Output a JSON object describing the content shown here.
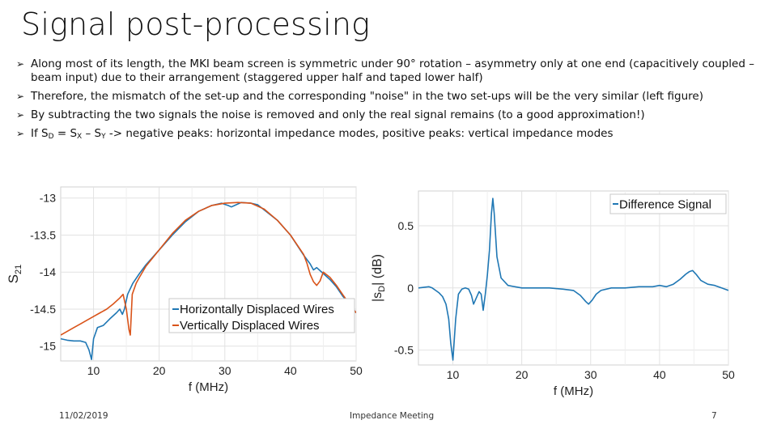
{
  "slide": {
    "title": "Signal post-processing",
    "bullets": [
      "Along most of its length, the MKI beam screen is symmetric under 90° rotation – asymmetry only at one end (capacitively coupled – beam input) due to their arrangement (staggered upper half and taped lower half)",
      "Therefore, the mismatch of the set-up and the corresponding \"noise\" in the two set-ups will be the very similar (left figure)",
      "By subtracting the two signals the noise is removed and only the real signal remains (to a good approximation!)"
    ],
    "bullet4": {
      "p1": "If S",
      "sub1": "D",
      "p2": " = S",
      "sub2": "X",
      "p3": " – S",
      "sub3": "Y",
      "p4": " -> negative peaks: horizontal impedance modes, positive peaks: vertical impedance modes"
    },
    "footer": {
      "date": "11/02/2019",
      "title": "Impedance Meeting",
      "page": "7"
    }
  },
  "chart_data": [
    {
      "type": "line",
      "xlabel": "f (MHz)",
      "ylabel": "S21",
      "xlim": [
        5,
        50
      ],
      "ylim": [
        -15.2,
        -12.85
      ],
      "xticks": [
        10,
        20,
        30,
        40,
        50
      ],
      "yticks": [
        -13,
        -13.5,
        -14,
        -14.5,
        -15
      ],
      "ytick_labels": [
        "-13",
        "-13.5",
        "-14",
        "-14.5",
        "-15"
      ],
      "grid": true,
      "legend": "bottom-right",
      "series": [
        {
          "name": "Horizontally Displaced Wires",
          "color": "#1f77b4",
          "points": [
            [
              5,
              -14.9
            ],
            [
              6,
              -14.92
            ],
            [
              7,
              -14.93
            ],
            [
              8,
              -14.93
            ],
            [
              8.8,
              -14.95
            ],
            [
              9.3,
              -15.05
            ],
            [
              9.7,
              -15.18
            ],
            [
              10,
              -14.9
            ],
            [
              10.6,
              -14.75
            ],
            [
              11.5,
              -14.72
            ],
            [
              12.5,
              -14.63
            ],
            [
              13.5,
              -14.55
            ],
            [
              14,
              -14.5
            ],
            [
              14.4,
              -14.57
            ],
            [
              14.7,
              -14.5
            ],
            [
              15.2,
              -14.3
            ],
            [
              16,
              -14.15
            ],
            [
              17,
              -14.02
            ],
            [
              18,
              -13.9
            ],
            [
              20,
              -13.7
            ],
            [
              22,
              -13.5
            ],
            [
              24,
              -13.32
            ],
            [
              26,
              -13.18
            ],
            [
              28,
              -13.1
            ],
            [
              29.5,
              -13.07
            ],
            [
              30.5,
              -13.1
            ],
            [
              31,
              -13.12
            ],
            [
              31.5,
              -13.1
            ],
            [
              32.5,
              -13.06
            ],
            [
              34,
              -13.07
            ],
            [
              35,
              -13.09
            ],
            [
              36,
              -13.16
            ],
            [
              38,
              -13.3
            ],
            [
              40,
              -13.5
            ],
            [
              42,
              -13.77
            ],
            [
              43,
              -13.89
            ],
            [
              43.5,
              -13.97
            ],
            [
              44,
              -13.94
            ],
            [
              45,
              -14.02
            ],
            [
              46,
              -14.1
            ],
            [
              47,
              -14.2
            ],
            [
              48,
              -14.33
            ],
            [
              49,
              -14.43
            ],
            [
              50,
              -14.55
            ]
          ]
        },
        {
          "name": "Vertically Displaced Wires",
          "color": "#d95319",
          "points": [
            [
              5,
              -14.85
            ],
            [
              6,
              -14.8
            ],
            [
              7,
              -14.75
            ],
            [
              8,
              -14.7
            ],
            [
              9,
              -14.65
            ],
            [
              10,
              -14.6
            ],
            [
              11,
              -14.55
            ],
            [
              12,
              -14.5
            ],
            [
              13,
              -14.43
            ],
            [
              14,
              -14.35
            ],
            [
              14.5,
              -14.3
            ],
            [
              15,
              -14.5
            ],
            [
              15.4,
              -14.78
            ],
            [
              15.6,
              -14.85
            ],
            [
              15.9,
              -14.3
            ],
            [
              16.5,
              -14.15
            ],
            [
              17,
              -14.07
            ],
            [
              18,
              -13.92
            ],
            [
              20,
              -13.7
            ],
            [
              22,
              -13.48
            ],
            [
              24,
              -13.3
            ],
            [
              26,
              -13.18
            ],
            [
              28,
              -13.1
            ],
            [
              30,
              -13.07
            ],
            [
              32,
              -13.06
            ],
            [
              34,
              -13.07
            ],
            [
              36,
              -13.15
            ],
            [
              38,
              -13.3
            ],
            [
              40,
              -13.5
            ],
            [
              42,
              -13.76
            ],
            [
              42.5,
              -13.88
            ],
            [
              43,
              -14.03
            ],
            [
              43.5,
              -14.13
            ],
            [
              44,
              -14.18
            ],
            [
              44.5,
              -14.12
            ],
            [
              45,
              -14.0
            ],
            [
              46,
              -14.07
            ],
            [
              47,
              -14.18
            ],
            [
              48,
              -14.31
            ],
            [
              49,
              -14.43
            ],
            [
              50,
              -14.55
            ]
          ]
        }
      ]
    },
    {
      "type": "line",
      "xlabel": "f (MHz)",
      "ylabel_main": "|s",
      "ylabel_sub": "D",
      "ylabel_end": "| (dB)",
      "xlim": [
        5,
        50
      ],
      "ylim": [
        -0.62,
        0.78
      ],
      "xticks": [
        10,
        20,
        30,
        40,
        50
      ],
      "yticks": [
        0.5,
        0,
        -0.5
      ],
      "ytick_labels": [
        "0.5",
        "0",
        "-0.5"
      ],
      "grid": true,
      "legend": "top-right",
      "series": [
        {
          "name": "Difference Signal",
          "color": "#1f77b4",
          "points": [
            [
              5,
              0.0
            ],
            [
              6.5,
              0.01
            ],
            [
              7,
              0.0
            ],
            [
              7.5,
              -0.02
            ],
            [
              8,
              -0.04
            ],
            [
              8.5,
              -0.07
            ],
            [
              9,
              -0.13
            ],
            [
              9.4,
              -0.25
            ],
            [
              9.7,
              -0.45
            ],
            [
              10,
              -0.58
            ],
            [
              10.4,
              -0.25
            ],
            [
              10.8,
              -0.05
            ],
            [
              11.3,
              -0.01
            ],
            [
              11.8,
              0.0
            ],
            [
              12.3,
              -0.01
            ],
            [
              12.7,
              -0.06
            ],
            [
              13.0,
              -0.13
            ],
            [
              13.4,
              -0.08
            ],
            [
              13.8,
              -0.03
            ],
            [
              14.1,
              -0.05
            ],
            [
              14.4,
              -0.18
            ],
            [
              14.7,
              -0.05
            ],
            [
              15.0,
              0.1
            ],
            [
              15.3,
              0.3
            ],
            [
              15.6,
              0.6
            ],
            [
              15.8,
              0.72
            ],
            [
              16.0,
              0.6
            ],
            [
              16.4,
              0.25
            ],
            [
              17,
              0.08
            ],
            [
              18,
              0.02
            ],
            [
              19,
              0.01
            ],
            [
              20,
              0.0
            ],
            [
              22,
              0.0
            ],
            [
              24,
              0.0
            ],
            [
              26,
              -0.01
            ],
            [
              27.5,
              -0.02
            ],
            [
              28.5,
              -0.06
            ],
            [
              29.3,
              -0.11
            ],
            [
              29.7,
              -0.13
            ],
            [
              30.2,
              -0.1
            ],
            [
              30.8,
              -0.05
            ],
            [
              31.5,
              -0.02
            ],
            [
              33,
              0.0
            ],
            [
              35,
              0.0
            ],
            [
              37,
              0.01
            ],
            [
              39,
              0.01
            ],
            [
              40,
              0.02
            ],
            [
              41,
              0.01
            ],
            [
              42,
              0.03
            ],
            [
              43,
              0.07
            ],
            [
              43.8,
              0.11
            ],
            [
              44.3,
              0.13
            ],
            [
              44.8,
              0.14
            ],
            [
              45.3,
              0.11
            ],
            [
              46,
              0.06
            ],
            [
              47,
              0.03
            ],
            [
              48,
              0.02
            ],
            [
              49,
              0.0
            ],
            [
              50,
              -0.02
            ]
          ]
        }
      ]
    }
  ]
}
